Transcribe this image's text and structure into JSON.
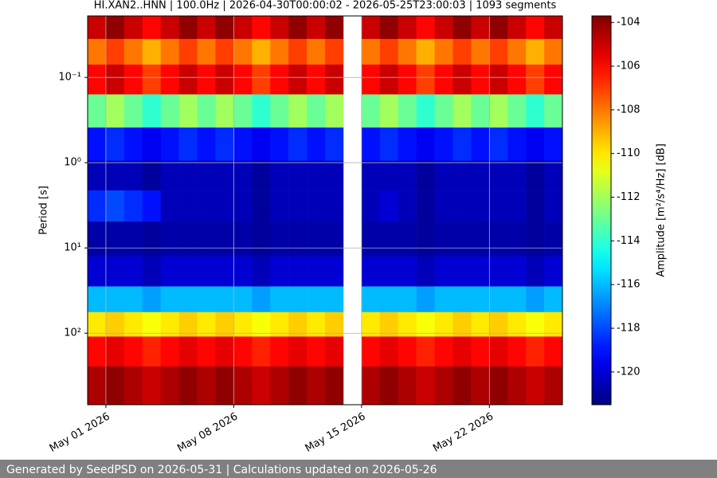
{
  "chart_data": {
    "type": "heatmap",
    "title": "HI.XAN2..HNN | 100.0Hz | 2026-04-30T00:00:02 - 2026-05-25T23:00:03 | 1093 segments",
    "y_label": "Period [s]",
    "colorbar_label": "Amplitude [m²/s⁴/Hz] [dB]",
    "footer": "Generated by SeedPSD on 2026-05-31 | Calculations updated on 2026-05-26",
    "colormap": "jet",
    "y_log": true,
    "y_inverted": true,
    "grid": true,
    "x": [
      "2026-04-30",
      "2026-05-01",
      "2026-05-02",
      "2026-05-03",
      "2026-05-04",
      "2026-05-05",
      "2026-05-06",
      "2026-05-07",
      "2026-05-08",
      "2026-05-09",
      "2026-05-10",
      "2026-05-11",
      "2026-05-12",
      "2026-05-13",
      "2026-05-14",
      "2026-05-15",
      "2026-05-16",
      "2026-05-17",
      "2026-05-18",
      "2026-05-19",
      "2026-05-20",
      "2026-05-21",
      "2026-05-22",
      "2026-05-23",
      "2026-05-24",
      "2026-05-25"
    ],
    "y": [
      0.025,
      0.05,
      0.1,
      0.25,
      0.6,
      1.5,
      3,
      8,
      20,
      40,
      80,
      150,
      400
    ],
    "values": [
      [
        -105,
        -104,
        -105,
        -106,
        -105,
        -104,
        -105,
        -104,
        -105,
        -106,
        -105,
        -104,
        -105,
        -104,
        null,
        -105,
        -104,
        -105,
        -106,
        -105,
        -104,
        -105,
        -104,
        -105,
        -106,
        -105
      ],
      [
        -108,
        -107,
        -108,
        -109,
        -108,
        -107,
        -108,
        -107,
        -108,
        -109,
        -108,
        -107,
        -108,
        -107,
        null,
        -108,
        -107,
        -108,
        -109,
        -108,
        -107,
        -108,
        -107,
        -108,
        -109,
        -108
      ],
      [
        -106,
        -105,
        -106,
        -107,
        -106,
        -105,
        -106,
        -105,
        -106,
        -107,
        -106,
        -105,
        -106,
        -105,
        null,
        -106,
        -105,
        -106,
        -107,
        -106,
        -105,
        -106,
        -105,
        -106,
        -107,
        -106
      ],
      [
        -113,
        -112,
        -113,
        -114,
        -113,
        -112,
        -113,
        -112,
        -113,
        -114,
        -113,
        -112,
        -113,
        -112,
        null,
        -113,
        -112,
        -113,
        -114,
        -113,
        -112,
        -113,
        -112,
        -113,
        -114,
        -113
      ],
      [
        -119,
        -118.5,
        -119,
        -119.5,
        -119,
        -118.5,
        -119,
        -118.5,
        -119,
        -119.5,
        -119,
        -118.5,
        -119,
        -118.5,
        null,
        -119,
        -118.5,
        -119,
        -119.5,
        -119,
        -118.5,
        -119,
        -118.5,
        -119,
        -119.5,
        -119
      ],
      [
        -120.5,
        -120.5,
        -120.5,
        -121,
        -120.5,
        -120.5,
        -120.5,
        -120.5,
        -120.5,
        -121,
        -120.5,
        -120.5,
        -120.5,
        -120.5,
        null,
        -120.5,
        -120.5,
        -120.5,
        -121,
        -120.5,
        -120.5,
        -120.5,
        -120.5,
        -120.5,
        -121,
        -120.5
      ],
      [
        -118.5,
        -118,
        -118.5,
        -119,
        -120.5,
        -120.5,
        -120.5,
        -120.5,
        -120.5,
        -121,
        -120.5,
        -120.5,
        -120.5,
        -120.5,
        null,
        -120.5,
        -120,
        -120.5,
        -121,
        -120.5,
        -120.5,
        -120.5,
        -120.5,
        -120.5,
        -121,
        -120.5
      ],
      [
        -120.8,
        -120.8,
        -120.8,
        -121,
        -120.8,
        -120.8,
        -120.8,
        -120.8,
        -120.8,
        -121,
        -120.8,
        -120.8,
        -120.8,
        -120.8,
        null,
        -120.8,
        -120.8,
        -120.8,
        -121,
        -120.8,
        -120.8,
        -120.8,
        -120.8,
        -120.8,
        -121,
        -120.8
      ],
      [
        -120,
        -120,
        -120,
        -120.5,
        -120,
        -120,
        -120,
        -120,
        -120,
        -120.5,
        -120,
        -120,
        -120,
        -120,
        null,
        -120,
        -120,
        -120,
        -120.5,
        -120,
        -120,
        -120,
        -120,
        -120,
        -120.5,
        -120
      ],
      [
        -116,
        -116,
        -116,
        -116.5,
        -116,
        -116,
        -116,
        -116,
        -116,
        -116.5,
        -116,
        -116,
        -116,
        -116,
        null,
        -116,
        -116,
        -116,
        -116.5,
        -116,
        -116,
        -116,
        -116,
        -116,
        -116.5,
        -116
      ],
      [
        -110,
        -109.5,
        -110,
        -110.5,
        -110,
        -109.5,
        -110,
        -109.5,
        -110,
        -110.5,
        -110,
        -109.5,
        -110,
        -109.5,
        null,
        -110,
        -109.5,
        -110,
        -110.5,
        -110,
        -109.5,
        -110,
        -109.5,
        -110,
        -110.5,
        -110
      ],
      [
        -106,
        -105.5,
        -106,
        -106.5,
        -106,
        -105.5,
        -106,
        -105.5,
        -106,
        -106.5,
        -106,
        -105.5,
        -106,
        -105.5,
        null,
        -106,
        -105.5,
        -106,
        -106.5,
        -106,
        -105.5,
        -106,
        -105.5,
        -106,
        -106.5,
        -106
      ],
      [
        -104.5,
        -104,
        -104.5,
        -105,
        -104.5,
        -104,
        -104.5,
        -104,
        -104.5,
        -105,
        -104.5,
        -104,
        -104.5,
        -104,
        null,
        -104.5,
        -104,
        -104.5,
        -105,
        -104.5,
        -104,
        -104.5,
        -104,
        -104.5,
        -105,
        -104.5
      ]
    ],
    "xlim": [
      "2026-04-30",
      "2026-05-26"
    ],
    "xticks": [
      {
        "value": "2026-05-01",
        "label": "May 01 2026"
      },
      {
        "value": "2026-05-08",
        "label": "May 08 2026"
      },
      {
        "value": "2026-05-15",
        "label": "May 15 2026"
      },
      {
        "value": "2026-05-22",
        "label": "May 22 2026"
      }
    ],
    "ylim": [
      0.019,
      690
    ],
    "yticks": [
      {
        "value": 0.1,
        "label": "10⁻¹"
      },
      {
        "value": 1,
        "label": "10⁰"
      },
      {
        "value": 10,
        "label": "10¹"
      },
      {
        "value": 100,
        "label": "10²"
      }
    ],
    "zlim": [
      -121.5,
      -103.7
    ],
    "zticks": [
      -104,
      -106,
      -108,
      -110,
      -112,
      -114,
      -116,
      -118,
      -120
    ]
  }
}
